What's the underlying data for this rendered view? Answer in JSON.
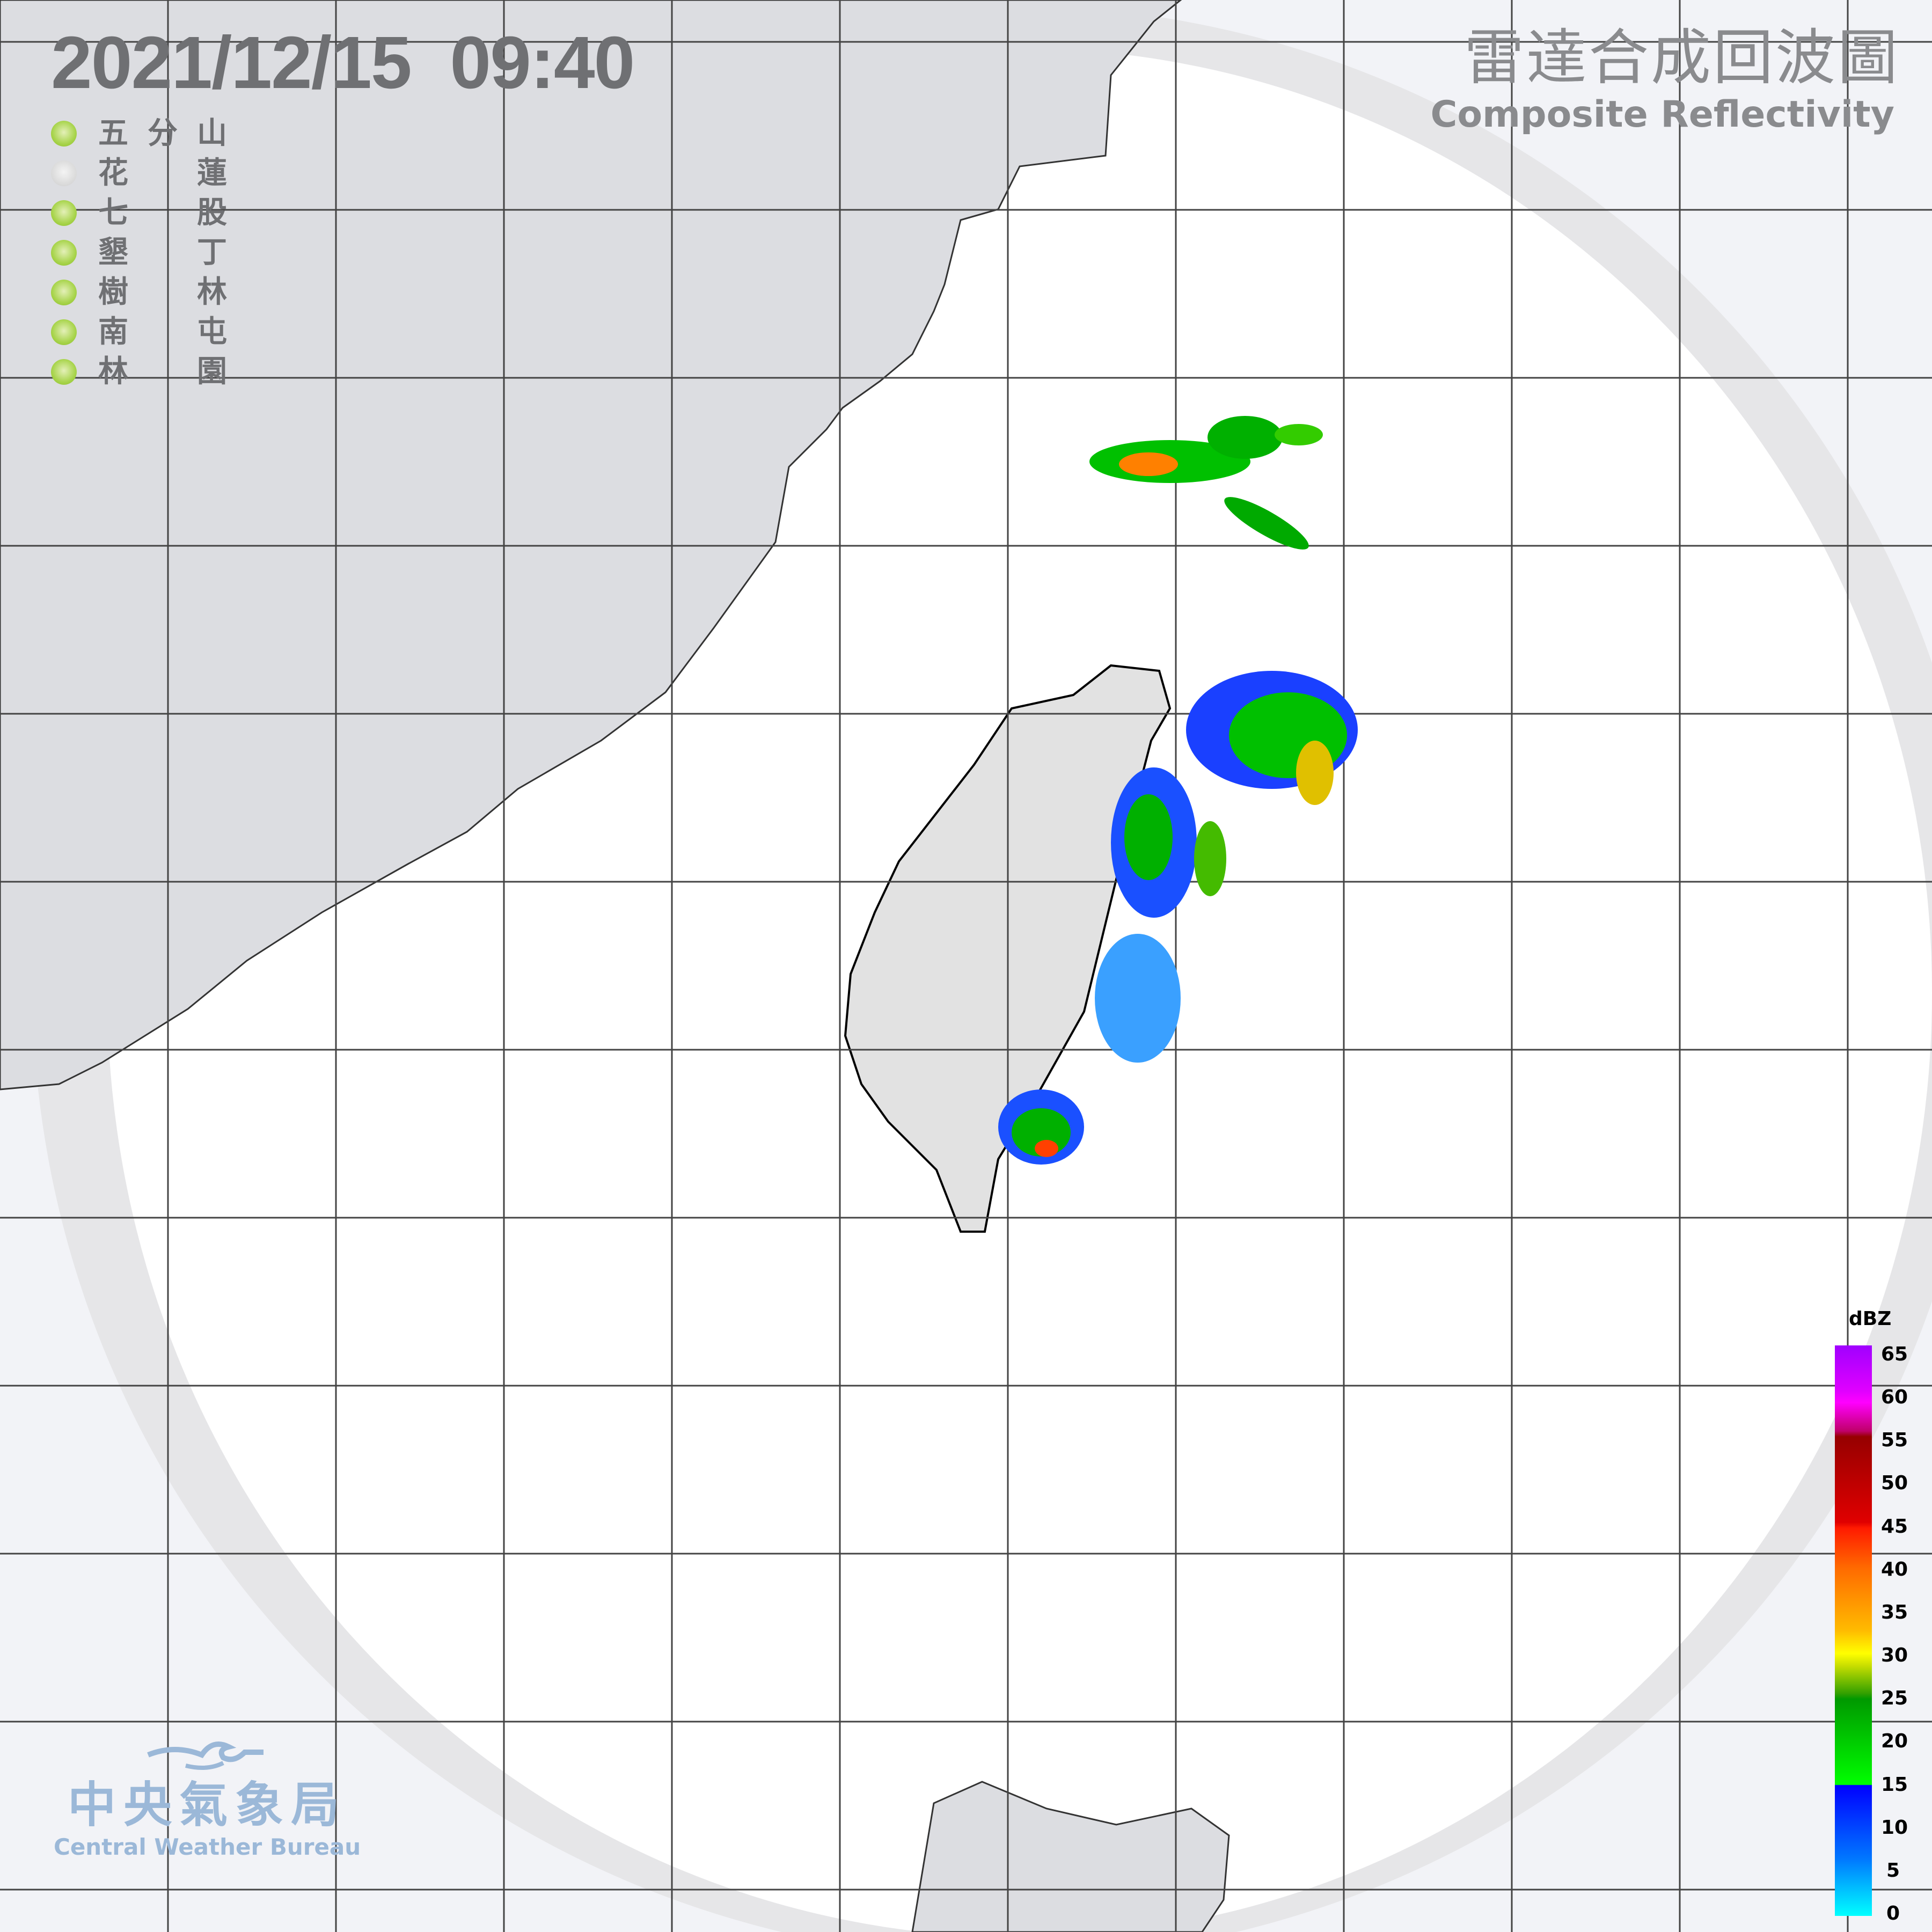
{
  "timestamp": "2021/12/15  09:40",
  "title": {
    "zh": "雷達合成回波圖",
    "en": "Composite Reflectivity"
  },
  "stations": [
    {
      "name_first": "五",
      "name_mid": "分",
      "name_last": "山",
      "status": "online"
    },
    {
      "name_first": "花",
      "name_mid": "",
      "name_last": "蓮",
      "status": "offline"
    },
    {
      "name_first": "七",
      "name_mid": "",
      "name_last": "股",
      "status": "online"
    },
    {
      "name_first": "墾",
      "name_mid": "",
      "name_last": "丁",
      "status": "online"
    },
    {
      "name_first": "樹",
      "name_mid": "",
      "name_last": "林",
      "status": "online"
    },
    {
      "name_first": "南",
      "name_mid": "",
      "name_last": "屯",
      "status": "online"
    },
    {
      "name_first": "林",
      "name_mid": "",
      "name_last": "園",
      "status": "online"
    }
  ],
  "colorbar": {
    "unit": "dBZ",
    "ticks": [
      "65",
      "60",
      "55",
      "50",
      "45",
      "40",
      "35",
      "30",
      "25",
      "20",
      "15",
      "10",
      "5",
      "0"
    ],
    "colors": {
      "online": "#9fd03c",
      "offline": "#d6d6d6"
    }
  },
  "logo": {
    "zh": "中央氣象局",
    "en": "Central Weather Bureau"
  }
}
